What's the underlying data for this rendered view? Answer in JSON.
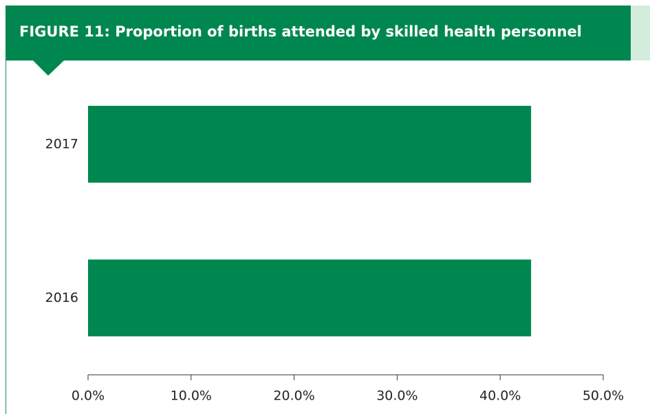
{
  "chart_data": {
    "type": "hbar",
    "title": "FIGURE 11: Proportion of births attended by skilled health personnel",
    "categories": [
      "2017",
      "2016"
    ],
    "values": [
      43.0,
      43.0
    ],
    "color": "#00874f",
    "xlim": [
      0,
      50
    ],
    "xticks": [
      {
        "value": 0,
        "label": "0.0%"
      },
      {
        "value": 10,
        "label": "10.0%"
      },
      {
        "value": 20,
        "label": "20.0%"
      },
      {
        "value": 30,
        "label": "30.0%"
      },
      {
        "value": 40,
        "label": "40.0%"
      },
      {
        "value": 50,
        "label": "50.0%"
      }
    ]
  }
}
